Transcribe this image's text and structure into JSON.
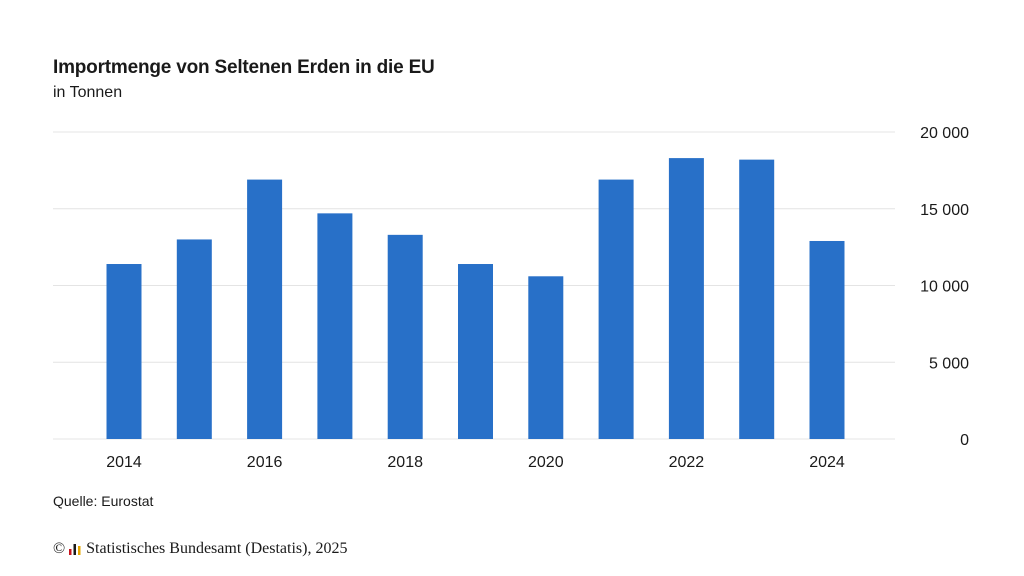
{
  "chart_data": {
    "type": "bar",
    "title": "Importmenge von Seltenen Erden in die EU",
    "subtitle": "in Tonnen",
    "categories": [
      "2014",
      "2015",
      "2016",
      "2017",
      "2018",
      "2019",
      "2020",
      "2021",
      "2022",
      "2023",
      "2024"
    ],
    "values": [
      11400,
      13000,
      16900,
      14700,
      13300,
      11400,
      10600,
      16900,
      18300,
      18200,
      12900
    ],
    "x_tick_labels": [
      "2014",
      "2016",
      "2018",
      "2020",
      "2022",
      "2024"
    ],
    "y_ticks": [
      0,
      5000,
      10000,
      15000,
      20000
    ],
    "y_tick_labels": [
      "0",
      "5 000",
      "10 000",
      "15 000",
      "20 000"
    ],
    "ylim": [
      0,
      20000
    ],
    "grid": true,
    "y_axis_position": "right",
    "bar_color": "#2870c8",
    "grid_color": "#e4e4e4"
  },
  "footer": {
    "source": "Quelle: Eurostat",
    "copyright_symbol": "©",
    "copyright_text": "Statistisches Bundesamt (Destatis), 2025"
  }
}
